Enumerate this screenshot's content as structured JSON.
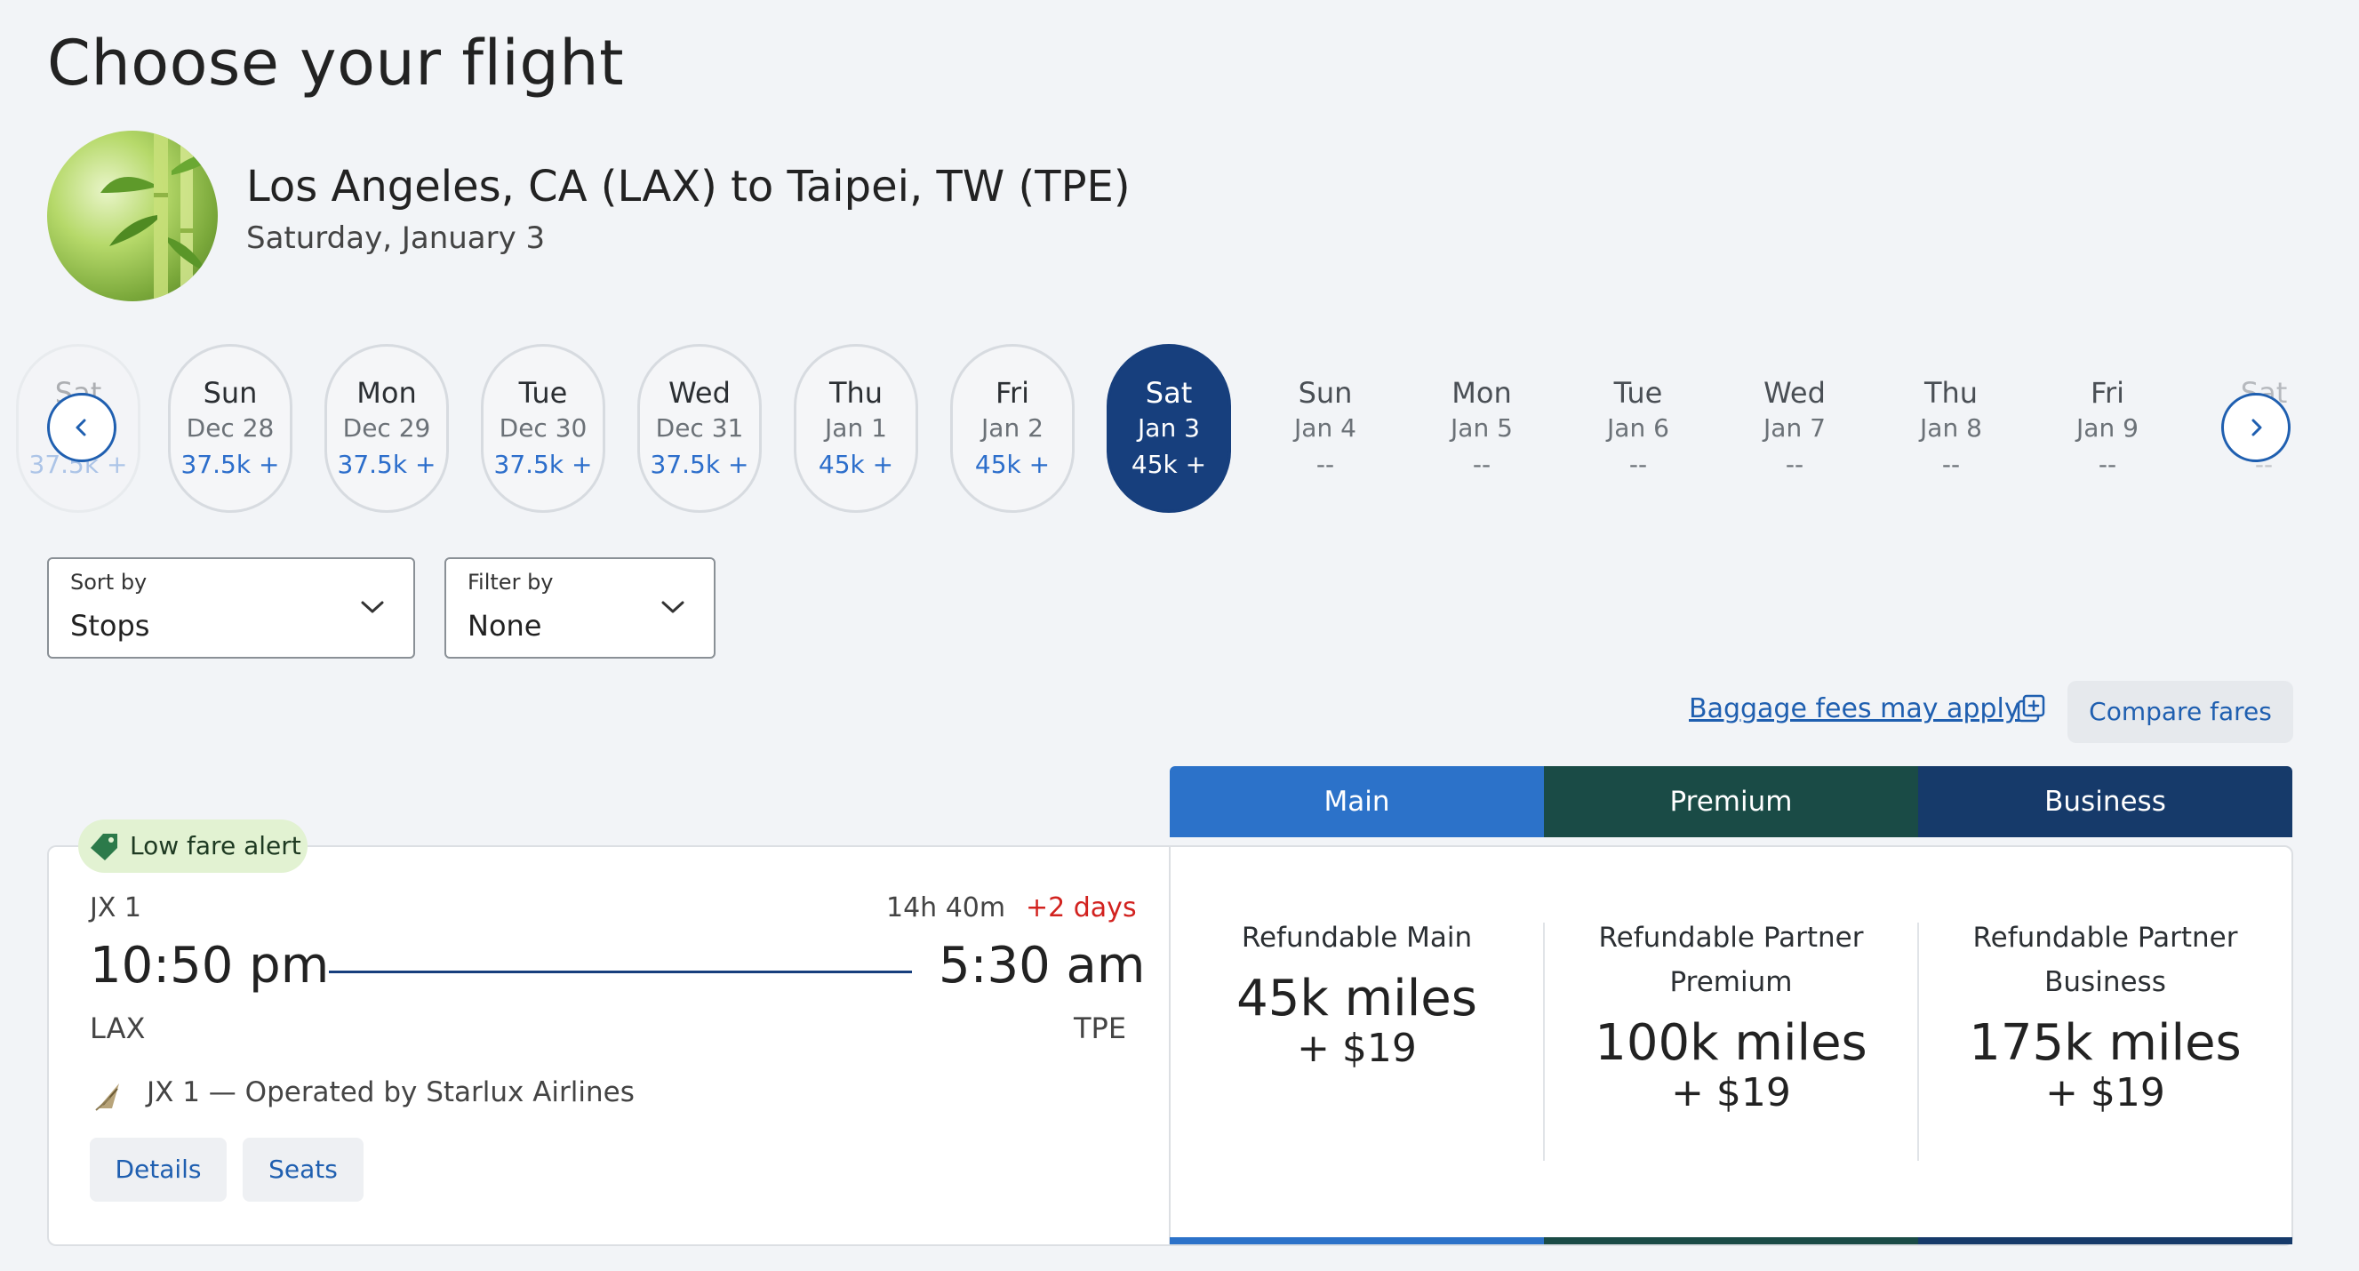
{
  "page": {
    "title": "Choose your flight"
  },
  "route": {
    "title": "Los Angeles, CA (LAX) to Taipei, TW (TPE)",
    "date": "Saturday, January 3"
  },
  "date_strip": {
    "partial_left": {
      "dow": "Sat",
      "price": "37.5k +"
    },
    "days": [
      {
        "dow": "Sun",
        "date": "Dec 28",
        "price": "37.5k +"
      },
      {
        "dow": "Mon",
        "date": "Dec 29",
        "price": "37.5k +"
      },
      {
        "dow": "Tue",
        "date": "Dec 30",
        "price": "37.5k +"
      },
      {
        "dow": "Wed",
        "date": "Dec 31",
        "price": "37.5k +"
      },
      {
        "dow": "Thu",
        "date": "Jan 1",
        "price": "45k +"
      },
      {
        "dow": "Fri",
        "date": "Jan 2",
        "price": "45k +"
      },
      {
        "dow": "Sat",
        "date": "Jan 3",
        "price": "45k +"
      },
      {
        "dow": "Sun",
        "date": "Jan 4",
        "price": "--"
      },
      {
        "dow": "Mon",
        "date": "Jan 5",
        "price": "--"
      },
      {
        "dow": "Tue",
        "date": "Jan 6",
        "price": "--"
      },
      {
        "dow": "Wed",
        "date": "Jan 7",
        "price": "--"
      },
      {
        "dow": "Thu",
        "date": "Jan 8",
        "price": "--"
      },
      {
        "dow": "Fri",
        "date": "Jan 9",
        "price": "--"
      }
    ],
    "partial_right": {
      "dow": "Sat",
      "price": "--"
    },
    "selected_index": 6
  },
  "sort": {
    "label": "Sort by",
    "value": "Stops"
  },
  "filter": {
    "label": "Filter by",
    "value": "None"
  },
  "links": {
    "baggage": "Baggage fees may apply",
    "compare": "Compare fares"
  },
  "fare_tabs": [
    {
      "label": "Main",
      "color": "#2c72c9"
    },
    {
      "label": "Premium",
      "color": "#1a4b46"
    },
    {
      "label": "Business",
      "color": "#163a6a"
    }
  ],
  "flight": {
    "badge": "Low fare alert",
    "number": "JX 1",
    "duration": "14h 40m",
    "day_offset": "+2 days",
    "depart_time": "10:50 pm",
    "arrive_time": "5:30 am",
    "depart_code": "LAX",
    "arrive_code": "TPE",
    "operated_by": "JX 1 — Operated by Starlux Airlines",
    "details_label": "Details",
    "seats_label": "Seats"
  },
  "fares": [
    {
      "name_line1": "Refundable Main",
      "name_line2": "",
      "miles": "45k miles",
      "tax": "+ $19"
    },
    {
      "name_line1": "Refundable Partner",
      "name_line2": "Premium",
      "miles": "100k miles",
      "tax": "+ $19"
    },
    {
      "name_line1": "Refundable Partner",
      "name_line2": "Business",
      "miles": "175k miles",
      "tax": "+ $19"
    }
  ],
  "colors": {
    "accent": "#1f5fb0",
    "selected_date": "#173f7d",
    "alert_red": "#d2221f",
    "low_fare_bg": "#e2f2d2"
  }
}
